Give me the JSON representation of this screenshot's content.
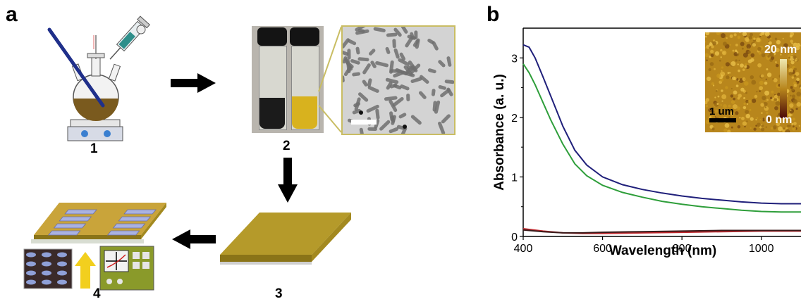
{
  "panel_a": {
    "letter": "a",
    "steps": [
      "1",
      "2",
      "3",
      "4"
    ]
  },
  "panel_b": {
    "letter": "b",
    "inset": {
      "max_label": "20 nm",
      "min_label": "0 nm",
      "scale_label": "1 um"
    }
  },
  "colors": {
    "blue_series": "#1f1f7a",
    "green_series": "#2e9e3a",
    "red_series": "#c0282d",
    "dark_series": "#3a1a1a",
    "film_gold": "#b59a2a",
    "arrow": "#000000"
  },
  "chart_data": {
    "type": "line",
    "xlabel": "Wavelength (nm)",
    "ylabel": "Absorbance (a. u.)",
    "xlim": [
      400,
      1100
    ],
    "ylim": [
      0,
      3.5
    ],
    "x_ticks": [
      "400",
      "600",
      "800",
      "1000"
    ],
    "y_ticks": [
      "0",
      "1",
      "2",
      "3"
    ],
    "grid": false,
    "series": [
      {
        "color": "#1f1f7a",
        "x": [
          400,
          415,
          430,
          450,
          470,
          500,
          530,
          560,
          600,
          650,
          700,
          750,
          800,
          850,
          900,
          950,
          1000,
          1050,
          1100
        ],
        "y": [
          3.22,
          3.18,
          3.0,
          2.68,
          2.35,
          1.85,
          1.45,
          1.2,
          1.0,
          0.87,
          0.79,
          0.73,
          0.68,
          0.64,
          0.61,
          0.58,
          0.56,
          0.55,
          0.55
        ]
      },
      {
        "color": "#2e9e3a",
        "x": [
          400,
          415,
          430,
          450,
          470,
          500,
          530,
          560,
          600,
          650,
          700,
          750,
          800,
          850,
          900,
          950,
          1000,
          1050,
          1100
        ],
        "y": [
          2.9,
          2.75,
          2.55,
          2.25,
          1.95,
          1.55,
          1.22,
          1.02,
          0.86,
          0.74,
          0.66,
          0.59,
          0.54,
          0.5,
          0.47,
          0.44,
          0.42,
          0.41,
          0.41
        ]
      },
      {
        "color": "#c0282d",
        "x": [
          400,
          450,
          500,
          550,
          600,
          700,
          800,
          900,
          1000,
          1100
        ],
        "y": [
          0.13,
          0.09,
          0.06,
          0.05,
          0.05,
          0.06,
          0.07,
          0.08,
          0.09,
          0.09
        ]
      },
      {
        "color": "#3a1a1a",
        "x": [
          400,
          450,
          500,
          550,
          600,
          700,
          800,
          900,
          1000,
          1100
        ],
        "y": [
          0.11,
          0.08,
          0.06,
          0.06,
          0.07,
          0.08,
          0.09,
          0.1,
          0.1,
          0.1
        ]
      }
    ]
  }
}
